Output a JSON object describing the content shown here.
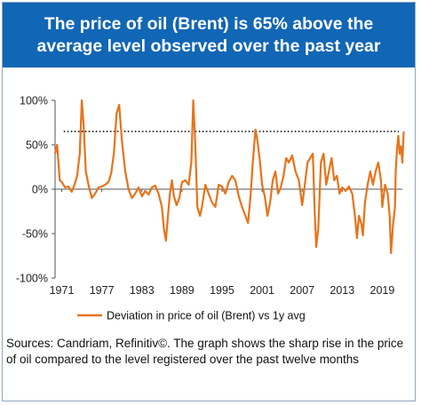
{
  "header": {
    "title": "The price of oil (Brent) is 65% above the average level observed over the past year"
  },
  "colors": {
    "header_bg": "#1166b5",
    "series": "#e8731a",
    "reference_line": "#000000"
  },
  "chart_data": {
    "type": "line",
    "title": "",
    "xlabel": "",
    "ylabel": "",
    "x_ticks": [
      "1971",
      "1977",
      "1983",
      "1989",
      "1995",
      "2001",
      "2007",
      "2013",
      "2019"
    ],
    "y_ticks": [
      "100%",
      "50%",
      "0%",
      "-50%",
      "-100%"
    ],
    "xlim": [
      1970,
      2022
    ],
    "ylim": [
      -100,
      100
    ],
    "grid": false,
    "legend_position": "bottom",
    "reference_line": {
      "value": 65,
      "style": "dotted"
    },
    "series": [
      {
        "name": "Deviation in price of oil (Brent) vs 1y avg",
        "points": [
          [
            1970.0,
            40
          ],
          [
            1970.3,
            50
          ],
          [
            1970.7,
            10
          ],
          [
            1971.0,
            8
          ],
          [
            1971.5,
            2
          ],
          [
            1972.0,
            3
          ],
          [
            1972.5,
            -3
          ],
          [
            1972.9,
            5
          ],
          [
            1973.3,
            15
          ],
          [
            1973.7,
            40
          ],
          [
            1974.0,
            100
          ],
          [
            1974.3,
            70
          ],
          [
            1974.6,
            20
          ],
          [
            1975.0,
            5
          ],
          [
            1975.5,
            -10
          ],
          [
            1976.0,
            -5
          ],
          [
            1976.5,
            2
          ],
          [
            1977.0,
            3
          ],
          [
            1977.5,
            5
          ],
          [
            1978.0,
            8
          ],
          [
            1978.4,
            18
          ],
          [
            1978.8,
            40
          ],
          [
            1979.2,
            85
          ],
          [
            1979.6,
            95
          ],
          [
            1980.0,
            55
          ],
          [
            1980.5,
            20
          ],
          [
            1981.0,
            0
          ],
          [
            1981.5,
            -10
          ],
          [
            1982.0,
            -5
          ],
          [
            1982.5,
            2
          ],
          [
            1983.0,
            -8
          ],
          [
            1983.5,
            -2
          ],
          [
            1984.0,
            -6
          ],
          [
            1984.5,
            2
          ],
          [
            1985.0,
            4
          ],
          [
            1985.5,
            -5
          ],
          [
            1986.0,
            -20
          ],
          [
            1986.3,
            -45
          ],
          [
            1986.6,
            -58
          ],
          [
            1986.9,
            -30
          ],
          [
            1987.2,
            -5
          ],
          [
            1987.5,
            10
          ],
          [
            1987.8,
            -8
          ],
          [
            1988.2,
            -18
          ],
          [
            1988.6,
            -10
          ],
          [
            1989.0,
            8
          ],
          [
            1989.5,
            10
          ],
          [
            1990.0,
            5
          ],
          [
            1990.4,
            30
          ],
          [
            1990.7,
            100
          ],
          [
            1991.0,
            50
          ],
          [
            1991.3,
            -20
          ],
          [
            1991.7,
            -30
          ],
          [
            1992.0,
            -20
          ],
          [
            1992.5,
            5
          ],
          [
            1993.0,
            -5
          ],
          [
            1993.5,
            -15
          ],
          [
            1994.0,
            -20
          ],
          [
            1994.5,
            5
          ],
          [
            1995.0,
            3
          ],
          [
            1995.5,
            -5
          ],
          [
            1996.0,
            8
          ],
          [
            1996.5,
            15
          ],
          [
            1997.0,
            10
          ],
          [
            1997.5,
            -8
          ],
          [
            1998.0,
            -20
          ],
          [
            1998.5,
            -30
          ],
          [
            1998.9,
            -38
          ],
          [
            1999.3,
            -5
          ],
          [
            1999.6,
            30
          ],
          [
            2000.0,
            67
          ],
          [
            2000.3,
            55
          ],
          [
            2000.7,
            30
          ],
          [
            2001.0,
            5
          ],
          [
            2001.4,
            -8
          ],
          [
            2001.8,
            -30
          ],
          [
            2002.2,
            -15
          ],
          [
            2002.6,
            10
          ],
          [
            2003.0,
            20
          ],
          [
            2003.4,
            -5
          ],
          [
            2003.8,
            2
          ],
          [
            2004.2,
            15
          ],
          [
            2004.6,
            35
          ],
          [
            2005.0,
            30
          ],
          [
            2005.5,
            38
          ],
          [
            2006.0,
            20
          ],
          [
            2006.5,
            10
          ],
          [
            2007.0,
            -18
          ],
          [
            2007.4,
            5
          ],
          [
            2007.8,
            30
          ],
          [
            2008.2,
            35
          ],
          [
            2008.6,
            40
          ],
          [
            2008.9,
            -30
          ],
          [
            2009.1,
            -65
          ],
          [
            2009.4,
            -45
          ],
          [
            2009.8,
            30
          ],
          [
            2010.2,
            40
          ],
          [
            2010.6,
            5
          ],
          [
            2011.0,
            20
          ],
          [
            2011.4,
            35
          ],
          [
            2011.8,
            10
          ],
          [
            2012.2,
            15
          ],
          [
            2012.6,
            -5
          ],
          [
            2013.0,
            2
          ],
          [
            2013.5,
            -2
          ],
          [
            2014.0,
            3
          ],
          [
            2014.5,
            -5
          ],
          [
            2014.9,
            -30
          ],
          [
            2015.2,
            -55
          ],
          [
            2015.5,
            -30
          ],
          [
            2015.9,
            -40
          ],
          [
            2016.1,
            -52
          ],
          [
            2016.4,
            -15
          ],
          [
            2016.8,
            5
          ],
          [
            2017.2,
            20
          ],
          [
            2017.6,
            5
          ],
          [
            2018.0,
            20
          ],
          [
            2018.4,
            30
          ],
          [
            2018.8,
            10
          ],
          [
            2019.0,
            -20
          ],
          [
            2019.4,
            5
          ],
          [
            2019.8,
            -5
          ],
          [
            2020.1,
            -30
          ],
          [
            2020.3,
            -72
          ],
          [
            2020.6,
            -40
          ],
          [
            2020.9,
            -20
          ],
          [
            2021.0,
            20
          ],
          [
            2021.2,
            45
          ],
          [
            2021.4,
            60
          ],
          [
            2021.6,
            40
          ],
          [
            2021.8,
            48
          ],
          [
            2022.0,
            30
          ],
          [
            2022.2,
            65
          ]
        ]
      }
    ]
  },
  "sources": {
    "text": "Sources: Candriam, Refinitiv©. The graph shows the sharp rise in the price of oil compared to the level registered over the past twelve months"
  }
}
